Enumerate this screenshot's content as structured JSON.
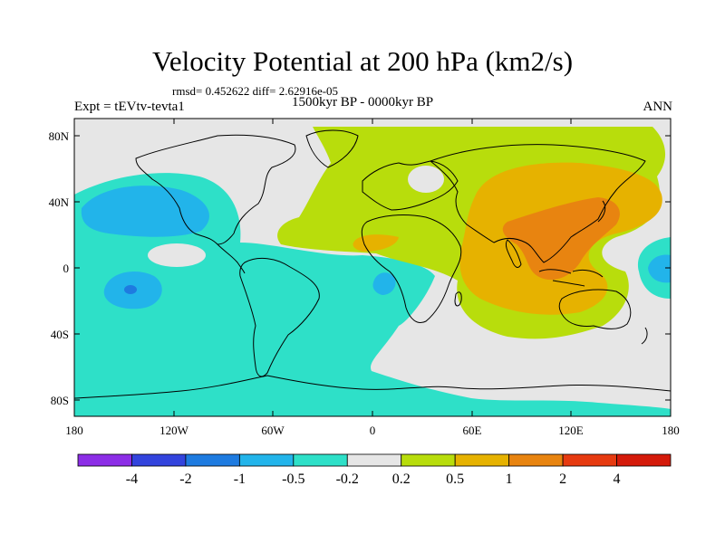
{
  "title": "Velocity Potential at 200 hPa (km2/s)",
  "stats": "rmsd= 0.452622 diff= 2.62916e-05",
  "experiment": "Expt = tEVtv-tevta1",
  "period": "1500kyr BP - 0000kyr BP",
  "season": "ANN",
  "y_ticks": [
    "80N",
    "40N",
    "0",
    "40S",
    "80S"
  ],
  "x_ticks": [
    "180",
    "120W",
    "60W",
    "0",
    "60E",
    "120E",
    "180"
  ],
  "colorbar": {
    "labels": [
      "-4",
      "-2",
      "-1",
      "-0.5",
      "-0.2",
      "0.2",
      "0.5",
      "1",
      "2",
      "4"
    ],
    "colors": [
      "#8c2ee6",
      "#3344dd",
      "#1e7be0",
      "#22b4ea",
      "#2ee0c8",
      "#e6e6e6",
      "#b8dd0c",
      "#e6b200",
      "#e88410",
      "#e63a10",
      "#d41a0a"
    ]
  },
  "colors": {
    "neutral": "#e6e6e6",
    "cyan_level": "#2ee0c8",
    "blue_level": "#22b4ea",
    "green_level": "#b8dd0c",
    "orange_level": "#e6b200",
    "dark_orange_level": "#e88410"
  }
}
